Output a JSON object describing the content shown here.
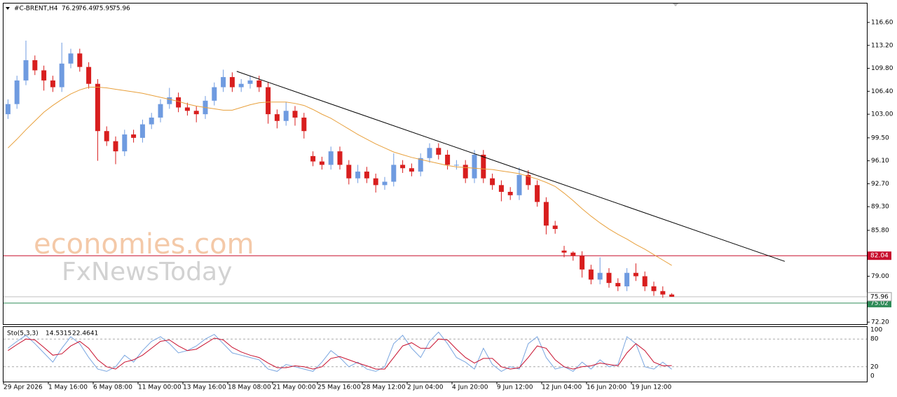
{
  "chart_data": {
    "type": "candlestick",
    "symbol": "#C-BRENT,H4",
    "categories": [
      "29 Apr 2026",
      null,
      null,
      null,
      null,
      "1 May 16:00",
      null,
      null,
      null,
      null,
      "6 May 08:00",
      null,
      null,
      null,
      null,
      "11 May 00:00",
      null,
      null,
      null,
      null,
      "13 May 16:00",
      null,
      null,
      null,
      null,
      "18 May 08:00",
      null,
      null,
      null,
      null,
      "21 May 00:00",
      null,
      null,
      null,
      null,
      "25 May 16:00",
      null,
      null,
      null,
      null,
      "28 May 12:00",
      null,
      null,
      null,
      null,
      "2 Jun 04:00",
      null,
      null,
      null,
      null,
      "4 Jun 20:00",
      null,
      null,
      null,
      null,
      "9 Jun 12:00",
      null,
      null,
      null,
      null,
      "12 Jun 04:00",
      null,
      null,
      null,
      null,
      "16 Jun 20:00",
      null,
      null,
      null,
      null,
      "19 Jun 12:00",
      null,
      null,
      null,
      null
    ],
    "open": [
      103,
      104.5,
      108,
      111,
      109.5,
      108,
      107,
      110.5,
      112,
      110,
      107.5,
      100.5,
      99,
      97.5,
      100,
      99.5,
      101.5,
      102.5,
      104.5,
      105.5,
      104,
      103.5,
      103,
      105,
      107,
      108.5,
      107,
      107.5,
      108,
      107,
      103,
      102,
      103.5,
      102.5,
      96.8,
      96,
      95.5,
      97.5,
      95.5,
      93.5,
      94.5,
      93.5,
      92.5,
      93,
      95.5,
      95,
      94.5,
      96.5,
      98,
      97,
      95.5,
      95.5,
      93.5,
      97,
      93.5,
      92.5,
      91.5,
      91,
      94,
      92.5,
      90,
      86.5,
      82.8,
      82.5,
      82,
      80,
      78.5,
      79.5,
      78,
      77.5,
      79.5,
      79,
      77.5,
      76.8,
      76.29
    ],
    "high": [
      105.2,
      108.7,
      113.9,
      111.7,
      110.2,
      108.7,
      113.6,
      112.7,
      112.7,
      110.7,
      108.2,
      101.2,
      99.7,
      100.7,
      100.7,
      102.2,
      103.2,
      105.2,
      106.9,
      106.2,
      104.7,
      104.2,
      105.7,
      107.7,
      109.6,
      109.2,
      108.2,
      108.7,
      108.7,
      107.7,
      103.7,
      104.8,
      104.2,
      103.2,
      97.5,
      96.7,
      98.2,
      98.2,
      96.2,
      95.5,
      95.2,
      94.2,
      93.7,
      97.2,
      96.2,
      95.7,
      97.2,
      98.7,
      98.7,
      97.7,
      96.2,
      96.2,
      97.7,
      97.7,
      94.2,
      93.2,
      92.2,
      95.1,
      94.7,
      93.2,
      90.7,
      87.2,
      83.5,
      82.7,
      82.7,
      80.7,
      81.8,
      80.2,
      78.7,
      80.2,
      80.9,
      79.7,
      78.2,
      77.5,
      76.49
    ],
    "low": [
      102.3,
      103.8,
      107.3,
      108.8,
      106.5,
      106.3,
      106.3,
      109.8,
      109.3,
      106.8,
      96.1,
      98.3,
      95.6,
      96.8,
      98.8,
      98.8,
      100.8,
      101.8,
      103.8,
      103.3,
      102.8,
      101.8,
      102.3,
      104.3,
      106.3,
      106.3,
      106.3,
      106.8,
      106.3,
      101.6,
      100.9,
      101.3,
      101.3,
      99.4,
      95.3,
      94.8,
      94.8,
      94.8,
      92.6,
      92.8,
      92.8,
      91.4,
      91.8,
      92.3,
      94.3,
      93.8,
      93.8,
      95.8,
      96.3,
      94.8,
      94.8,
      92.8,
      92.8,
      92.8,
      91.8,
      90.1,
      90.3,
      90.3,
      91.8,
      89.3,
      85.2,
      85.3,
      81.8,
      81.3,
      78.8,
      77.8,
      77.8,
      77.3,
      76.8,
      76.8,
      78.3,
      76.8,
      76.1,
      75.8,
      75.95
    ],
    "close": [
      104.5,
      108,
      111,
      109.5,
      108,
      107,
      110.5,
      112,
      110,
      107.5,
      100.5,
      99,
      97.5,
      100,
      99.5,
      101.5,
      102.5,
      104.5,
      105.5,
      104,
      103.5,
      103,
      105,
      107,
      108.5,
      107,
      107.5,
      108,
      107,
      103,
      102,
      103.5,
      102.5,
      100.5,
      96,
      95.5,
      97.5,
      95.5,
      93.5,
      94.5,
      93.5,
      92.5,
      93,
      95.5,
      95,
      94.5,
      96.5,
      98,
      97,
      95.5,
      95.5,
      93.5,
      97,
      93.5,
      92.5,
      91.5,
      91,
      94,
      92.5,
      90,
      86.5,
      86,
      82.5,
      82,
      80,
      78.5,
      79.5,
      78,
      77.5,
      79.5,
      79,
      77.5,
      76.8,
      76.29,
      75.96
    ],
    "up_color": "#6f9be0",
    "down_color": "#d81e1e",
    "moving_average": {
      "color": "#e8a03c",
      "values": [
        98,
        99.3,
        100.7,
        102,
        103.3,
        104.3,
        105.2,
        106,
        106.6,
        107,
        107,
        106.9,
        106.7,
        106.5,
        106.3,
        106.1,
        105.8,
        105.5,
        105.2,
        104.9,
        104.5,
        104.2,
        104,
        103.8,
        103.6,
        103.6,
        104,
        104.4,
        104.7,
        104.8,
        104.8,
        104.8,
        104.6,
        104.3,
        103.7,
        103,
        102.4,
        101.6,
        100.8,
        100,
        99.3,
        98.6,
        98,
        97.4,
        97,
        96.6,
        96.3,
        96,
        95.7,
        95.4,
        95.2,
        95.1,
        95,
        94.9,
        94.8,
        94.6,
        94.4,
        94.2,
        93.8,
        93.4,
        92.9,
        92.3,
        91.3,
        90.2,
        89,
        87.9,
        86.9,
        86,
        85.2,
        84.5,
        83.7,
        83,
        82.2,
        81.4,
        80.6
      ]
    },
    "trendline": {
      "color": "#000000",
      "x": [
        25.5,
        86.6
      ],
      "y": [
        109.35,
        81.2
      ]
    },
    "levels": [
      {
        "value": 82.04,
        "color": "#c8102e"
      },
      {
        "value": 75.02,
        "color": "#2e8b57"
      }
    ],
    "ylim": [
      72.0,
      119.4
    ],
    "yticks": [
      {
        "value": 116.6,
        "label": "116.60"
      },
      {
        "value": 113.2,
        "label": "113.20"
      },
      {
        "value": 109.8,
        "label": "109.80"
      },
      {
        "value": 106.4,
        "label": "106.40"
      },
      {
        "value": 103.0,
        "label": "103.00"
      },
      {
        "value": 99.5,
        "label": "99.50"
      },
      {
        "value": 96.1,
        "label": "96.10"
      },
      {
        "value": 92.7,
        "label": "92.70"
      },
      {
        "value": 89.3,
        "label": "89.30"
      },
      {
        "value": 85.8,
        "label": "85.80"
      },
      {
        "value": 79.0,
        "label": "79.00"
      },
      {
        "value": 72.2,
        "label": "72.20"
      }
    ],
    "watermarks": [
      "economies.com",
      "FxNewsToday"
    ],
    "stochastic": {
      "name": "Sto(5,3,3)",
      "ylim": [
        0,
        100
      ],
      "yticks": [
        0,
        20,
        80,
        100
      ],
      "series": [
        {
          "color": "#7aa6e0",
          "values": [
            60,
            75,
            88,
            70,
            50,
            30,
            60,
            85,
            70,
            40,
            15,
            10,
            20,
            45,
            30,
            55,
            75,
            85,
            70,
            50,
            55,
            65,
            80,
            90,
            70,
            50,
            45,
            40,
            35,
            15,
            10,
            25,
            20,
            15,
            10,
            30,
            55,
            40,
            20,
            30,
            15,
            10,
            20,
            70,
            88,
            60,
            40,
            75,
            95,
            70,
            40,
            30,
            15,
            60,
            25,
            10,
            20,
            15,
            70,
            85,
            40,
            15,
            20,
            10,
            30,
            15,
            35,
            20,
            25,
            85,
            70,
            20,
            15,
            30,
            14.5315
          ]
        },
        {
          "color": "#c8102e",
          "values": [
            55,
            68,
            80,
            78,
            62,
            45,
            48,
            65,
            75,
            60,
            35,
            20,
            15,
            30,
            35,
            45,
            60,
            75,
            78,
            65,
            55,
            58,
            70,
            82,
            78,
            62,
            52,
            45,
            40,
            28,
            18,
            18,
            22,
            20,
            15,
            20,
            38,
            42,
            35,
            28,
            22,
            15,
            15,
            40,
            65,
            72,
            60,
            60,
            80,
            78,
            58,
            40,
            28,
            38,
            38,
            20,
            15,
            18,
            40,
            65,
            60,
            35,
            20,
            15,
            20,
            22,
            28,
            25,
            22,
            50,
            70,
            55,
            30,
            22,
            22.4641
          ]
        }
      ]
    }
  }
}
